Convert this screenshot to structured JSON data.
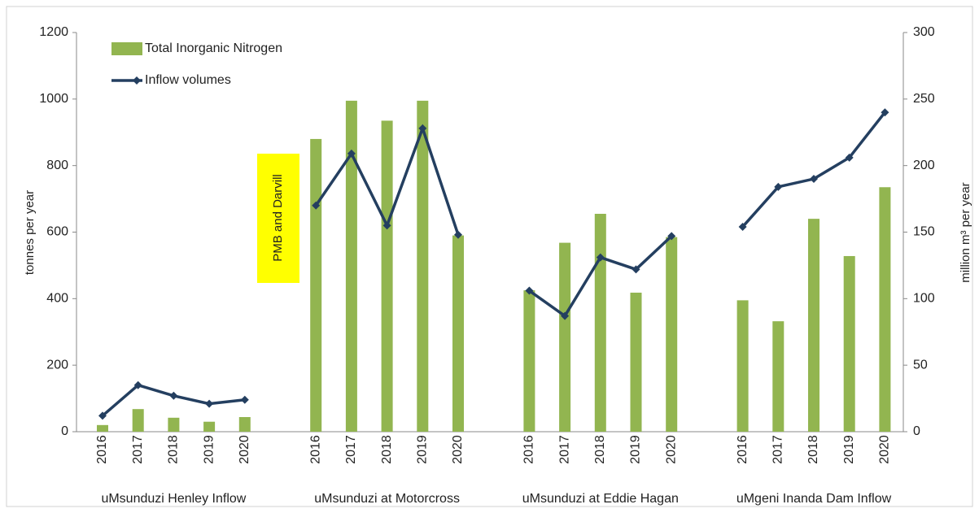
{
  "chart_data": {
    "type": "bar_line",
    "categories": [
      "2016",
      "2017",
      "2018",
      "2019",
      "2020",
      null,
      "2016",
      "2017",
      "2018",
      "2019",
      "2020",
      null,
      "2016",
      "2017",
      "2018",
      "2019",
      "2020",
      null,
      "2016",
      "2017",
      "2018",
      "2019",
      "2020"
    ],
    "groups": [
      "uMsunduzi Henley Inflow",
      "uMsunduzi at Motorcross",
      "uMsunduzi at Eddie Hagan",
      "uMgeni Inanda Dam Inflow"
    ],
    "series": [
      {
        "name": "Total Inorganic Nitrogen",
        "type": "bar",
        "color": "#92b550",
        "axis": "y",
        "values": [
          20,
          68,
          42,
          30,
          44,
          null,
          880,
          995,
          935,
          995,
          590,
          null,
          425,
          568,
          655,
          418,
          585,
          null,
          395,
          332,
          640,
          528,
          735
        ]
      },
      {
        "name": "Inflow volumes",
        "type": "line",
        "color": "#243f60",
        "axis": "y2",
        "values": [
          12,
          35,
          27,
          21,
          24,
          null,
          170,
          209,
          155,
          228,
          148,
          null,
          106,
          87,
          131,
          122,
          147,
          null,
          154,
          184,
          190,
          206,
          240
        ]
      }
    ],
    "ylabel": "tonnes per year",
    "y2label": "million m³ per year",
    "ylim": [
      0,
      1200
    ],
    "yticks": [
      0,
      200,
      400,
      600,
      800,
      1000,
      1200
    ],
    "y2lim": [
      0,
      300
    ],
    "y2ticks": [
      0,
      50,
      100,
      150,
      200,
      250,
      300
    ],
    "annotation": "PMB and Darvill",
    "legend": "upper left"
  }
}
